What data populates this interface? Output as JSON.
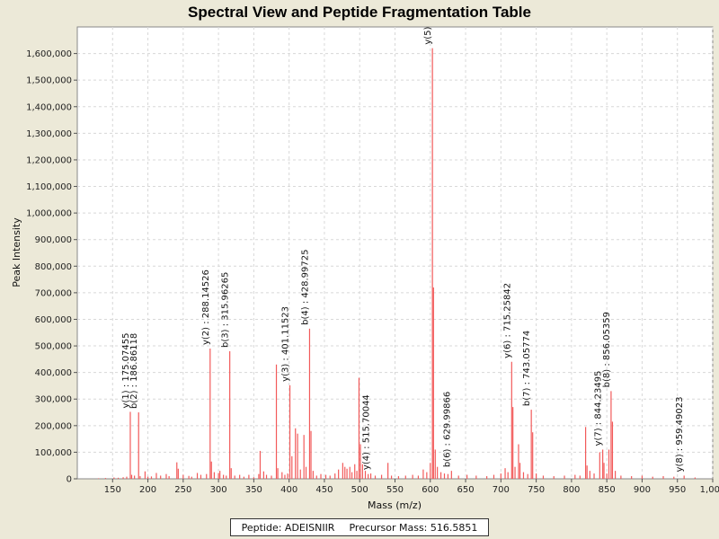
{
  "chart_data": {
    "type": "bar",
    "title": "Spectral View and Peptide Fragmentation Table",
    "xlabel": "Mass (m/z)",
    "ylabel": "Peak Intensity",
    "xlim": [
      100,
      1000
    ],
    "ylim": [
      0,
      1700000
    ],
    "x_ticks": [
      150,
      200,
      250,
      300,
      350,
      400,
      450,
      500,
      550,
      600,
      650,
      700,
      750,
      800,
      850,
      900,
      950,
      1000
    ],
    "x_tick_labels": [
      "150",
      "200",
      "250",
      "300",
      "350",
      "400",
      "450",
      "500",
      "550",
      "600",
      "650",
      "700",
      "750",
      "800",
      "850",
      "900",
      "950",
      "1,000"
    ],
    "y_ticks": [
      0,
      100000,
      200000,
      300000,
      400000,
      500000,
      600000,
      700000,
      800000,
      900000,
      1000000,
      1100000,
      1200000,
      1300000,
      1400000,
      1500000,
      1600000
    ],
    "y_tick_labels": [
      "0",
      "100,000",
      "200,000",
      "300,000",
      "400,000",
      "500,000",
      "600,000",
      "700,000",
      "800,000",
      "900,000",
      "1,000,000",
      "1,100,000",
      "1,200,000",
      "1,300,000",
      "1,400,000",
      "1,500,000",
      "1,600,000"
    ],
    "grid": true,
    "colors": {
      "peak": "#f25a5a",
      "grid": "#d8d8d8",
      "plot_bg": "#ffffff"
    },
    "peaks": [
      {
        "mz": 130,
        "intensity": 2000
      },
      {
        "mz": 140,
        "intensity": 3000
      },
      {
        "mz": 152,
        "intensity": 5000
      },
      {
        "mz": 158,
        "intensity": 4000
      },
      {
        "mz": 165,
        "intensity": 6000
      },
      {
        "mz": 170,
        "intensity": 8000
      },
      {
        "mz": 175.07,
        "intensity": 252000
      },
      {
        "mz": 177,
        "intensity": 15000
      },
      {
        "mz": 181,
        "intensity": 12000
      },
      {
        "mz": 186.86,
        "intensity": 250000
      },
      {
        "mz": 189,
        "intensity": 10000
      },
      {
        "mz": 196,
        "intensity": 28000
      },
      {
        "mz": 200,
        "intensity": 8000
      },
      {
        "mz": 205,
        "intensity": 9000
      },
      {
        "mz": 212,
        "intensity": 22000
      },
      {
        "mz": 218,
        "intensity": 12000
      },
      {
        "mz": 226,
        "intensity": 18000
      },
      {
        "mz": 230,
        "intensity": 10000
      },
      {
        "mz": 241,
        "intensity": 62000
      },
      {
        "mz": 243,
        "intensity": 38000
      },
      {
        "mz": 250,
        "intensity": 15000
      },
      {
        "mz": 258,
        "intensity": 11000
      },
      {
        "mz": 262,
        "intensity": 8000
      },
      {
        "mz": 270,
        "intensity": 22000
      },
      {
        "mz": 275,
        "intensity": 15000
      },
      {
        "mz": 283,
        "intensity": 18000
      },
      {
        "mz": 288.15,
        "intensity": 490000
      },
      {
        "mz": 290,
        "intensity": 65000
      },
      {
        "mz": 294,
        "intensity": 25000
      },
      {
        "mz": 300,
        "intensity": 22000
      },
      {
        "mz": 302,
        "intensity": 30000
      },
      {
        "mz": 307,
        "intensity": 15000
      },
      {
        "mz": 311,
        "intensity": 12000
      },
      {
        "mz": 315.96,
        "intensity": 480000
      },
      {
        "mz": 318,
        "intensity": 40000
      },
      {
        "mz": 323,
        "intensity": 12000
      },
      {
        "mz": 330,
        "intensity": 15000
      },
      {
        "mz": 336,
        "intensity": 8000
      },
      {
        "mz": 343,
        "intensity": 15000
      },
      {
        "mz": 350,
        "intensity": 6000
      },
      {
        "mz": 357,
        "intensity": 18000
      },
      {
        "mz": 359,
        "intensity": 105000
      },
      {
        "mz": 364,
        "intensity": 28000
      },
      {
        "mz": 368,
        "intensity": 15000
      },
      {
        "mz": 375,
        "intensity": 12000
      },
      {
        "mz": 382,
        "intensity": 430000
      },
      {
        "mz": 384,
        "intensity": 40000
      },
      {
        "mz": 390,
        "intensity": 25000
      },
      {
        "mz": 394,
        "intensity": 15000
      },
      {
        "mz": 398,
        "intensity": 20000
      },
      {
        "mz": 401.12,
        "intensity": 352000
      },
      {
        "mz": 404,
        "intensity": 85000
      },
      {
        "mz": 409,
        "intensity": 190000
      },
      {
        "mz": 412,
        "intensity": 170000
      },
      {
        "mz": 416,
        "intensity": 35000
      },
      {
        "mz": 421,
        "intensity": 165000
      },
      {
        "mz": 424,
        "intensity": 45000
      },
      {
        "mz": 429,
        "intensity": 565000
      },
      {
        "mz": 431,
        "intensity": 180000
      },
      {
        "mz": 434,
        "intensity": 30000
      },
      {
        "mz": 439,
        "intensity": 12000
      },
      {
        "mz": 445,
        "intensity": 18000
      },
      {
        "mz": 452,
        "intensity": 15000
      },
      {
        "mz": 458,
        "intensity": 12000
      },
      {
        "mz": 465,
        "intensity": 20000
      },
      {
        "mz": 470,
        "intensity": 35000
      },
      {
        "mz": 476,
        "intensity": 60000
      },
      {
        "mz": 479,
        "intensity": 45000
      },
      {
        "mz": 482,
        "intensity": 38000
      },
      {
        "mz": 486,
        "intensity": 45000
      },
      {
        "mz": 489,
        "intensity": 25000
      },
      {
        "mz": 493,
        "intensity": 55000
      },
      {
        "mz": 496,
        "intensity": 30000
      },
      {
        "mz": 499,
        "intensity": 380000
      },
      {
        "mz": 501,
        "intensity": 130000
      },
      {
        "mz": 504,
        "intensity": 55000
      },
      {
        "mz": 508,
        "intensity": 30000
      },
      {
        "mz": 512,
        "intensity": 18000
      },
      {
        "mz": 515.7,
        "intensity": 20000
      },
      {
        "mz": 522,
        "intensity": 12000
      },
      {
        "mz": 531,
        "intensity": 15000
      },
      {
        "mz": 540,
        "intensity": 60000
      },
      {
        "mz": 545,
        "intensity": 12000
      },
      {
        "mz": 555,
        "intensity": 10000
      },
      {
        "mz": 565,
        "intensity": 12000
      },
      {
        "mz": 575,
        "intensity": 15000
      },
      {
        "mz": 583,
        "intensity": 12000
      },
      {
        "mz": 590,
        "intensity": 35000
      },
      {
        "mz": 595,
        "intensity": 25000
      },
      {
        "mz": 600,
        "intensity": 60000
      },
      {
        "mz": 603,
        "intensity": 1620000
      },
      {
        "mz": 604.5,
        "intensity": 720000
      },
      {
        "mz": 607,
        "intensity": 110000
      },
      {
        "mz": 610,
        "intensity": 45000
      },
      {
        "mz": 615,
        "intensity": 25000
      },
      {
        "mz": 620,
        "intensity": 20000
      },
      {
        "mz": 625,
        "intensity": 18000
      },
      {
        "mz": 629.99,
        "intensity": 30000
      },
      {
        "mz": 640,
        "intensity": 12000
      },
      {
        "mz": 652,
        "intensity": 15000
      },
      {
        "mz": 665,
        "intensity": 12000
      },
      {
        "mz": 680,
        "intensity": 10000
      },
      {
        "mz": 690,
        "intensity": 15000
      },
      {
        "mz": 700,
        "intensity": 20000
      },
      {
        "mz": 706,
        "intensity": 40000
      },
      {
        "mz": 710,
        "intensity": 25000
      },
      {
        "mz": 715.26,
        "intensity": 440000
      },
      {
        "mz": 717,
        "intensity": 270000
      },
      {
        "mz": 720,
        "intensity": 45000
      },
      {
        "mz": 725,
        "intensity": 130000
      },
      {
        "mz": 727,
        "intensity": 60000
      },
      {
        "mz": 732,
        "intensity": 25000
      },
      {
        "mz": 738,
        "intensity": 18000
      },
      {
        "mz": 743.06,
        "intensity": 260000
      },
      {
        "mz": 745,
        "intensity": 175000
      },
      {
        "mz": 750,
        "intensity": 20000
      },
      {
        "mz": 760,
        "intensity": 12000
      },
      {
        "mz": 775,
        "intensity": 10000
      },
      {
        "mz": 790,
        "intensity": 12000
      },
      {
        "mz": 805,
        "intensity": 15000
      },
      {
        "mz": 812,
        "intensity": 12000
      },
      {
        "mz": 820,
        "intensity": 195000
      },
      {
        "mz": 822,
        "intensity": 50000
      },
      {
        "mz": 826,
        "intensity": 30000
      },
      {
        "mz": 832,
        "intensity": 20000
      },
      {
        "mz": 840,
        "intensity": 100000
      },
      {
        "mz": 844.23,
        "intensity": 110000
      },
      {
        "mz": 846,
        "intensity": 60000
      },
      {
        "mz": 850,
        "intensity": 20000
      },
      {
        "mz": 853,
        "intensity": 110000
      },
      {
        "mz": 856.05,
        "intensity": 330000
      },
      {
        "mz": 858,
        "intensity": 215000
      },
      {
        "mz": 862,
        "intensity": 30000
      },
      {
        "mz": 870,
        "intensity": 12000
      },
      {
        "mz": 885,
        "intensity": 10000
      },
      {
        "mz": 900,
        "intensity": 12000
      },
      {
        "mz": 915,
        "intensity": 8000
      },
      {
        "mz": 930,
        "intensity": 10000
      },
      {
        "mz": 945,
        "intensity": 8000
      },
      {
        "mz": 959.49,
        "intensity": 12000
      },
      {
        "mz": 975,
        "intensity": 5000
      }
    ],
    "annotations": [
      {
        "mz": 175.07,
        "intensity": 252000,
        "text": "y(1) : 175.07455"
      },
      {
        "mz": 186.86,
        "intensity": 250000,
        "text": "b(2) : 186.86118"
      },
      {
        "mz": 288.15,
        "intensity": 490000,
        "text": "y(2) : 288.14526"
      },
      {
        "mz": 315.96,
        "intensity": 480000,
        "text": "b(3) : 315.96265"
      },
      {
        "mz": 401.12,
        "intensity": 352000,
        "text": "y(3) : 401.11523"
      },
      {
        "mz": 429,
        "intensity": 565000,
        "text": "b(4) : 428.99725"
      },
      {
        "mz": 515.7,
        "intensity": 20000,
        "text": "y(4) : 515.70044"
      },
      {
        "mz": 603,
        "intensity": 1620000,
        "text": "y(5)"
      },
      {
        "mz": 629.99,
        "intensity": 30000,
        "text": "b(6) : 629.99866"
      },
      {
        "mz": 715.26,
        "intensity": 440000,
        "text": "y(6) : 715.25842"
      },
      {
        "mz": 743.06,
        "intensity": 260000,
        "text": "b(7) : 743.05774"
      },
      {
        "mz": 844.23,
        "intensity": 110000,
        "text": "y(7) : 844.23495"
      },
      {
        "mz": 856.05,
        "intensity": 330000,
        "text": "b(8) : 856.05359"
      },
      {
        "mz": 959.49,
        "intensity": 12000,
        "text": "y(8) : 959.49023"
      }
    ]
  },
  "legend": {
    "peptide": "Peptide: ADEISNIIR",
    "precursor": "Precursor Mass: 516.5851"
  }
}
